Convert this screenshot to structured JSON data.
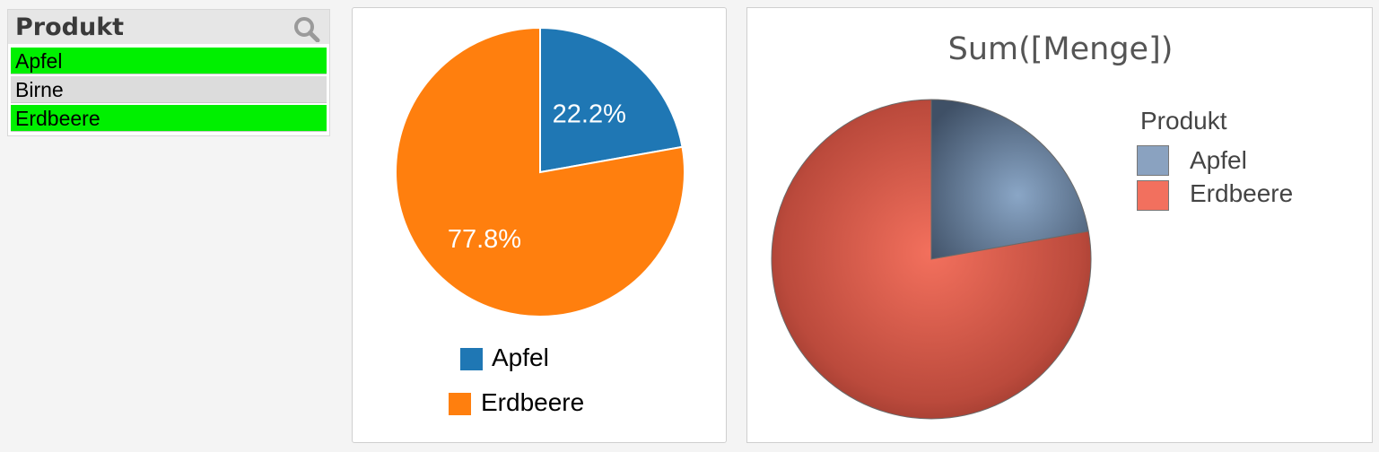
{
  "listbox": {
    "title": "Produkt",
    "search_icon": "search-icon",
    "items": [
      {
        "label": "Apfel",
        "state": "selected"
      },
      {
        "label": "Birne",
        "state": "excluded"
      },
      {
        "label": "Erdbeere",
        "state": "selected"
      }
    ]
  },
  "chart_data": [
    {
      "type": "pie",
      "title": "",
      "categories": [
        "Apfel",
        "Erdbeere"
      ],
      "values": [
        22.2,
        77.8
      ],
      "unit": "%",
      "data_labels": [
        "22.2%",
        "77.8%"
      ],
      "colors": [
        "#1f77b4",
        "#ff7f0e"
      ],
      "legend": {
        "position": "bottom",
        "entries": [
          "Apfel",
          "Erdbeere"
        ]
      }
    },
    {
      "type": "pie",
      "title": "Sum([Menge])",
      "categories": [
        "Apfel",
        "Erdbeere"
      ],
      "values": [
        22.2,
        77.8
      ],
      "colors": [
        "#8aa2c0",
        "#f2705e"
      ],
      "legend": {
        "position": "right",
        "title": "Produkt",
        "entries": [
          "Apfel",
          "Erdbeere"
        ]
      }
    }
  ]
}
